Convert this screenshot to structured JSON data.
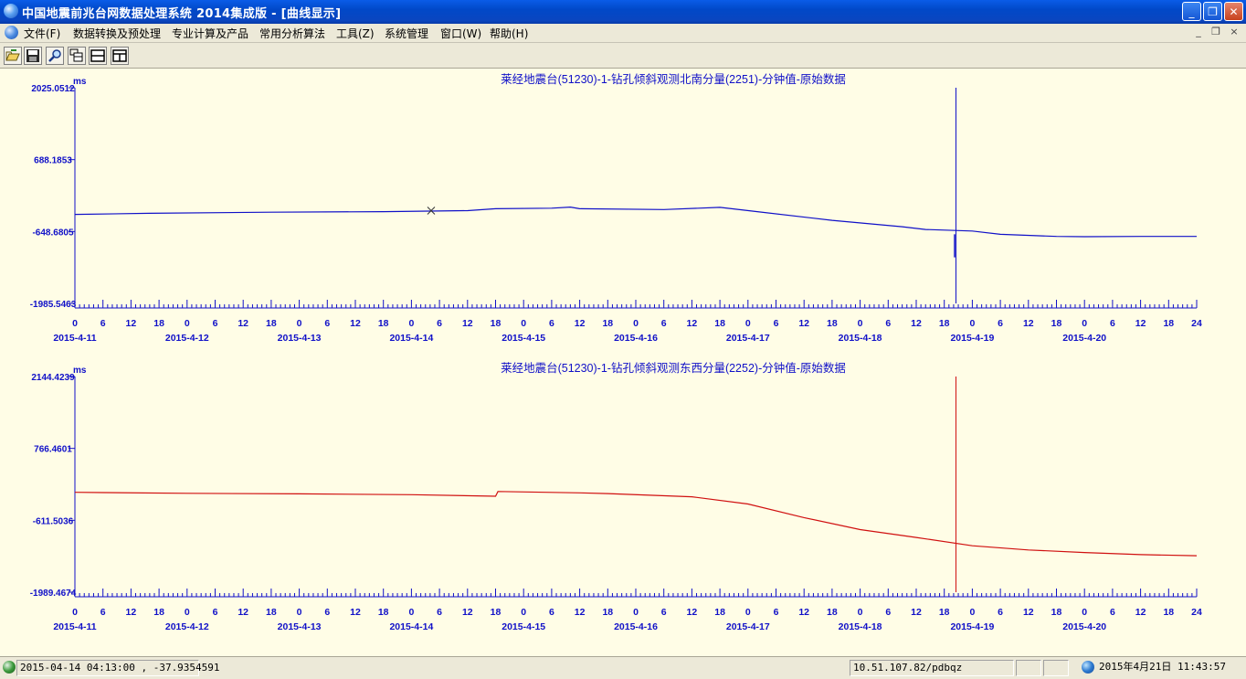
{
  "window": {
    "title": "中国地震前兆台网数据处理系统 2014集成版 - [曲线显示]",
    "min_symbol": "_",
    "max_symbol": "❐",
    "close_symbol": "✕"
  },
  "menu": {
    "items": [
      "文件(F)",
      "数据转换及预处理",
      "专业计算及产品",
      "常用分析算法",
      "工具(Z)",
      "系统管理",
      "窗口(W)",
      "帮助(H)"
    ],
    "mdi_controls": [
      "_",
      "❐",
      "×"
    ]
  },
  "toolbar": {
    "buttons": [
      "open-icon",
      "save-icon",
      "zoom-icon",
      "layout-icon",
      "split-horizontal-icon",
      "split-vertical-icon"
    ]
  },
  "chart_data": [
    {
      "type": "line",
      "title": "莱经地震台(51230)-1-钻孔倾斜观测北南分量(2251)-分钟值-原始数据",
      "ylabel": "ms",
      "yticks": [
        "2025.0512",
        "688.1853",
        "-648.6805",
        "-1985.5463"
      ],
      "ylim": [
        -1985.5463,
        2025.0512
      ],
      "xlim_days": [
        0,
        10
      ],
      "x_tick_labels": [
        "0",
        "6",
        "12",
        "18"
      ],
      "x_end_label": "24",
      "date_labels": [
        "2015-4-11",
        "2015-4-12",
        "2015-4-13",
        "2015-4-14",
        "2015-4-15",
        "2015-4-16",
        "2015-4-17",
        "2015-4-18",
        "2015-4-19",
        "2015-4-20"
      ],
      "color": "#1010c8",
      "series": [
        {
          "x": [
            "2015-04-11 00:00",
            "2015-04-11 16:00",
            "2015-04-12 18:00",
            "2015-04-13 18:00",
            "2015-04-14 12:00",
            "2015-04-14 18:00",
            "2015-04-15 06:00",
            "2015-04-15 10:00",
            "2015-04-15 12:00",
            "2015-04-16 06:00",
            "2015-04-16 18:00",
            "2015-04-17 02:00",
            "2015-04-17 18:00",
            "2015-04-18 09:00",
            "2015-04-18 14:00",
            "2015-04-19 00:00",
            "2015-04-19 06:00",
            "2015-04-19 18:00",
            "2015-04-20 00:00",
            "2015-04-20 12:00",
            "2015-04-21 00:00"
          ],
          "y": [
            -330,
            -310,
            -290,
            -280,
            -260,
            -225,
            -215,
            -195,
            -225,
            -240,
            -200,
            -280,
            -440,
            -560,
            -610,
            -640,
            -700,
            -740,
            -745,
            -740,
            -740
          ]
        }
      ],
      "spike": {
        "x": "2015-04-18 20:30",
        "y_top": 2025.05,
        "y_bottom": -1985.55,
        "y_mark": -1130
      },
      "marker": {
        "x": "2015-04-14 04:13",
        "y": -260
      }
    },
    {
      "type": "line",
      "title": "莱经地震台(51230)-1-钻孔倾斜观测东西分量(2252)-分钟值-原始数据",
      "ylabel": "ms",
      "yticks": [
        "2144.4239",
        "766.4601",
        "-611.5036",
        "-1989.4674"
      ],
      "ylim": [
        -1989.4674,
        2144.4239
      ],
      "xlim_days": [
        0,
        10
      ],
      "x_tick_labels": [
        "0",
        "6",
        "12",
        "18"
      ],
      "x_end_label": "24",
      "date_labels": [
        "2015-4-11",
        "2015-4-12",
        "2015-4-13",
        "2015-4-14",
        "2015-4-15",
        "2015-4-16",
        "2015-4-17",
        "2015-4-18",
        "2015-4-19",
        "2015-4-20"
      ],
      "color": "#d01010",
      "series": [
        {
          "x": [
            "2015-04-11 00:00",
            "2015-04-11 06:00",
            "2015-04-12 00:00",
            "2015-04-13 00:00",
            "2015-04-14 00:00",
            "2015-04-14 18:00",
            "2015-04-14 18:30",
            "2015-04-15 12:00",
            "2015-04-15 18:00",
            "2015-04-16 12:00",
            "2015-04-17 00:00",
            "2015-04-17 12:00",
            "2015-04-18 00:00",
            "2015-04-18 12:00",
            "2015-04-19 00:00",
            "2015-04-19 12:00",
            "2015-04-20 00:00",
            "2015-04-20 12:00",
            "2015-04-21 00:00"
          ],
          "y": [
            -75,
            -80,
            -95,
            -105,
            -120,
            -150,
            -60,
            -85,
            -100,
            -160,
            -300,
            -560,
            -790,
            -940,
            -1100,
            -1180,
            -1230,
            -1270,
            -1290
          ]
        }
      ],
      "spike": {
        "x": "2015-04-18 20:30",
        "y_top": 2144.42,
        "y_bottom": -1989.47
      }
    }
  ],
  "status": {
    "cursor": "2015-04-14 04:13:00 , -37.9354591",
    "server": "10.51.107.82/pdbqz",
    "datetime": "2015年4月21日 11:43:57"
  }
}
